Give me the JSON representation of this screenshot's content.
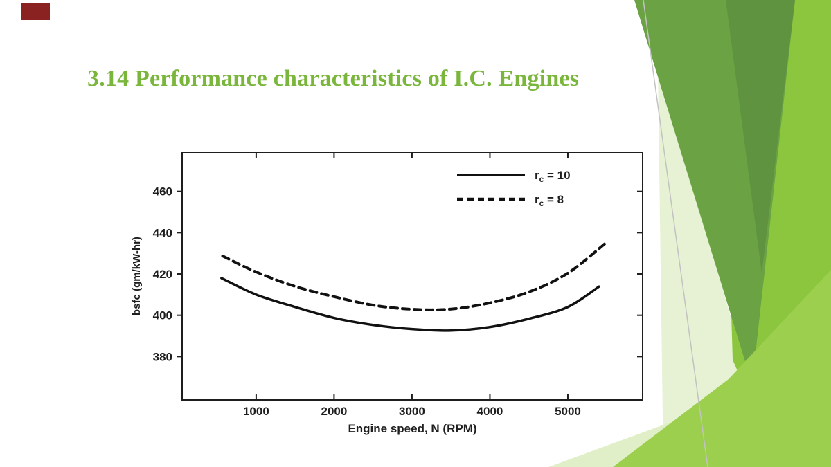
{
  "slide": {
    "title": "3.14 Performance characteristics of I.C. Engines"
  },
  "colors": {
    "title_green": "#7bb63c",
    "ink": "#1e1e1e",
    "accent_red": "#8b2222",
    "bg_bright": "#8cc63e",
    "bg_bright2": "#9ccf4e",
    "bg_dark": "#6ba244",
    "bg_darker": "#5f9340",
    "bg_pale": "#e6f2d3",
    "bg_pale2": "#e1efc8",
    "edge_line": "#c2c2c2"
  },
  "chart_data": {
    "type": "line",
    "title": "",
    "xlabel": "Engine speed, N (RPM)",
    "ylabel": "bsfc (gm/kW-hr)",
    "x_ticks": [
      1000,
      2000,
      3000,
      4000,
      5000
    ],
    "y_ticks": [
      460,
      440,
      420,
      400,
      380
    ],
    "xlim": [
      50,
      5960
    ],
    "ylim": [
      359,
      479
    ],
    "grid": false,
    "legend_position": "upper right",
    "series": [
      {
        "name": "rc = 10",
        "label_prefix": "r",
        "label_sub": "c",
        "label_suffix": " = 10",
        "line_style": "solid",
        "points": [
          [
            555,
            418
          ],
          [
            1000,
            410
          ],
          [
            1500,
            404
          ],
          [
            2000,
            398.7
          ],
          [
            2500,
            395.3
          ],
          [
            3000,
            393.3
          ],
          [
            3500,
            392.6
          ],
          [
            4000,
            394.3
          ],
          [
            4500,
            398.3
          ],
          [
            5000,
            404
          ],
          [
            5400,
            413.9
          ]
        ]
      },
      {
        "name": "rc = 8",
        "label_prefix": "r",
        "label_sub": "c",
        "label_suffix": " = 8",
        "line_style": "dashed",
        "points": [
          [
            570,
            428.7
          ],
          [
            1000,
            421
          ],
          [
            1500,
            414
          ],
          [
            2000,
            409
          ],
          [
            2500,
            404.9
          ],
          [
            3000,
            402.9
          ],
          [
            3500,
            403
          ],
          [
            4000,
            406
          ],
          [
            4500,
            411.3
          ],
          [
            5000,
            420.4
          ],
          [
            5470,
            434.5
          ]
        ]
      }
    ]
  }
}
